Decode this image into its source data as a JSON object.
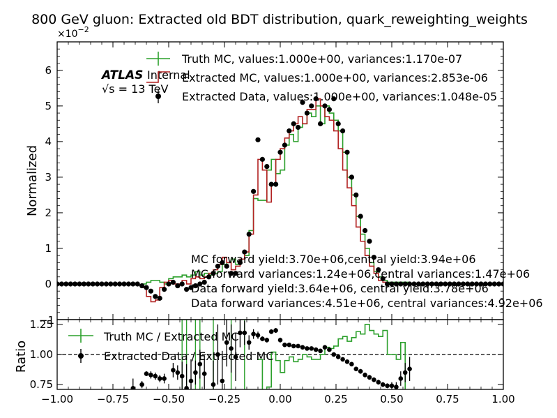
{
  "chart_data": {
    "type": "line",
    "title": "800 GeV gluon: Extracted old BDT distribution, quark_reweighting_weights",
    "scale_label": "×10",
    "scale_exp": "−2",
    "atlas": {
      "bold": "ATLAS",
      "rest": "Internal",
      "energy": "√s = 13 TeV"
    },
    "colors": {
      "truth": "#2ca02c",
      "extracted_mc": "#b22222",
      "data": "#000000"
    },
    "top": {
      "ylabel": "Normalized",
      "xlim": [
        -1.0,
        1.0
      ],
      "ylim": [
        -1.0,
        6.8
      ],
      "yticks": [
        0,
        1,
        2,
        3,
        4,
        5,
        6
      ],
      "ytick_labels": [
        "0",
        "1",
        "2",
        "3",
        "4",
        "5",
        "6"
      ],
      "low_label": "−1",
      "legend": [
        "Truth MC, values:1.000e+00, variances:1.170e-07",
        "Extracted MC, values:1.000e+00, variances:2.853e-06",
        "Extracted Data, values:1.000e+00, variances:1.048e-05"
      ],
      "annotations": [
        "MC forward yield:3.70e+06,central yield:3.94e+06",
        "MC forward variances:1.24e+06,central variances:1.47e+06",
        "Data forward yield:3.64e+06, central yield:3.78e+06",
        "Data forward variances:4.51e+06, central variances:4.92e+06"
      ],
      "edges": [
        -0.62,
        -0.6,
        -0.58,
        -0.56,
        -0.54,
        -0.52,
        -0.5,
        -0.48,
        -0.46,
        -0.44,
        -0.42,
        -0.4,
        -0.38,
        -0.36,
        -0.34,
        -0.32,
        -0.3,
        -0.28,
        -0.26,
        -0.24,
        -0.22,
        -0.2,
        -0.18,
        -0.16,
        -0.14,
        -0.12,
        -0.1,
        -0.08,
        -0.06,
        -0.04,
        -0.02,
        0.0,
        0.02,
        0.04,
        0.06,
        0.08,
        0.1,
        0.12,
        0.14,
        0.16,
        0.18,
        0.2,
        0.22,
        0.24,
        0.26,
        0.28,
        0.3,
        0.32,
        0.34,
        0.36,
        0.38,
        0.4,
        0.42,
        0.44,
        0.46,
        0.48,
        0.5,
        0.52,
        0.54,
        0.56,
        0.58,
        0.6
      ],
      "truth_mc": [
        0.0,
        0.05,
        0.1,
        0.1,
        0.05,
        0.0,
        0.15,
        0.2,
        0.2,
        0.25,
        0.2,
        0.25,
        0.35,
        0.25,
        0.3,
        0.25,
        0.3,
        0.35,
        0.55,
        0.6,
        0.7,
        0.55,
        0.7,
        0.8,
        1.5,
        2.4,
        2.35,
        2.35,
        3.2,
        3.5,
        3.1,
        3.2,
        3.9,
        4.2,
        4.0,
        4.4,
        4.5,
        4.8,
        4.7,
        5.0,
        4.5,
        5.0,
        4.8,
        4.6,
        4.3,
        3.7,
        3.0,
        2.5,
        1.9,
        1.4,
        1.0,
        0.6,
        0.35,
        0.2,
        0.1,
        0.05,
        0.05,
        0.05,
        0.05,
        0.05,
        0.0
      ],
      "extracted_mc": [
        -0.1,
        -0.35,
        -0.5,
        -0.45,
        -0.1,
        0.05,
        0.1,
        0.0,
        0.0,
        0.1,
        0.0,
        0.15,
        0.2,
        0.15,
        0.2,
        0.3,
        0.4,
        0.55,
        0.75,
        0.6,
        0.4,
        0.5,
        0.7,
        0.9,
        1.4,
        2.5,
        3.5,
        3.2,
        2.3,
        2.8,
        3.5,
        3.8,
        4.1,
        4.3,
        4.5,
        4.7,
        4.5,
        4.9,
        4.9,
        5.2,
        5.0,
        4.7,
        4.6,
        4.3,
        3.8,
        3.2,
        2.7,
        2.2,
        1.6,
        1.2,
        0.8,
        0.5,
        0.3,
        0.1,
        0.05,
        0.0,
        0.0,
        0.0,
        0.0,
        0.0,
        0.0
      ],
      "data_x": [
        -1.0,
        -0.98,
        -0.96,
        -0.94,
        -0.92,
        -0.9,
        -0.88,
        -0.86,
        -0.84,
        -0.82,
        -0.8,
        -0.78,
        -0.76,
        -0.74,
        -0.72,
        -0.7,
        -0.68,
        -0.66,
        -0.64,
        -0.62,
        -0.6,
        -0.58,
        -0.56,
        -0.54,
        -0.52,
        -0.5,
        -0.48,
        -0.46,
        -0.44,
        -0.42,
        -0.4,
        -0.38,
        -0.36,
        -0.34,
        -0.32,
        -0.3,
        -0.28,
        -0.26,
        -0.24,
        -0.22,
        -0.2,
        -0.18,
        -0.16,
        -0.14,
        -0.12,
        -0.1,
        -0.08,
        -0.06,
        -0.04,
        -0.02,
        0.0,
        0.02,
        0.04,
        0.06,
        0.08,
        0.1,
        0.12,
        0.14,
        0.16,
        0.18,
        0.2,
        0.22,
        0.24,
        0.26,
        0.28,
        0.3,
        0.32,
        0.34,
        0.36,
        0.38,
        0.4,
        0.42,
        0.44,
        0.46,
        0.48,
        0.5,
        0.52,
        0.54,
        0.56,
        0.58,
        0.6,
        0.62,
        0.64,
        0.66,
        0.68,
        0.7,
        0.72,
        0.74,
        0.76,
        0.78,
        0.8,
        0.82,
        0.84,
        0.86,
        0.88,
        0.9,
        0.92,
        0.94,
        0.96,
        0.98,
        1.0
      ],
      "data_y": [
        0.0,
        0.0,
        0.0,
        0.0,
        0.0,
        0.0,
        0.0,
        0.0,
        0.0,
        0.0,
        0.0,
        0.0,
        0.0,
        0.0,
        0.0,
        0.0,
        0.0,
        0.0,
        0.0,
        -0.05,
        -0.1,
        -0.2,
        -0.35,
        -0.4,
        -0.15,
        0.0,
        0.05,
        -0.05,
        0.0,
        -0.15,
        -0.1,
        -0.05,
        0.0,
        0.05,
        0.2,
        0.3,
        0.5,
        0.6,
        0.5,
        0.3,
        0.3,
        0.6,
        0.9,
        1.4,
        2.6,
        4.05,
        3.5,
        3.3,
        2.8,
        2.8,
        3.7,
        3.9,
        4.3,
        4.5,
        4.4,
        5.1,
        4.8,
        5.0,
        5.2,
        4.5,
        5.0,
        4.9,
        5.2,
        4.5,
        4.3,
        3.7,
        3.0,
        2.5,
        1.9,
        1.5,
        1.2,
        0.75,
        0.4,
        0.15,
        0.0,
        0.0,
        0.0,
        0.0,
        0.0,
        0.0,
        0.0,
        0.0,
        0.0,
        0.0,
        0.0,
        0.0,
        0.0,
        0.0,
        0.0,
        0.0,
        0.0,
        0.0,
        0.0,
        0.0,
        0.0,
        0.0,
        0.0,
        0.0,
        0.0,
        0.0,
        0.0
      ]
    },
    "bottom": {
      "ylabel": "Ratio",
      "xlim": [
        -1.0,
        1.0
      ],
      "ylim": [
        0.71,
        1.29
      ],
      "yticks": [
        0.75,
        1.0,
        1.25
      ],
      "ytick_labels": [
        "0.75",
        "1.00",
        "1.25"
      ],
      "xticks": [
        -1.0,
        -0.75,
        -0.5,
        -0.25,
        0.0,
        0.25,
        0.5,
        0.75,
        1.0
      ],
      "xtick_labels": [
        "−1.00",
        "−0.75",
        "−0.50",
        "−0.25",
        "0.00",
        "0.25",
        "0.50",
        "0.75",
        "1.00"
      ],
      "reference_line": 1.0,
      "legend": [
        "Truth MC / Extracted MC",
        "Extracted Data / Extracted MC"
      ],
      "truth_ratio_edges": [
        -0.1,
        -0.08,
        -0.06,
        -0.04,
        -0.02,
        0.0,
        0.02,
        0.04,
        0.06,
        0.08,
        0.1,
        0.12,
        0.14,
        0.16,
        0.18,
        0.2,
        0.22,
        0.24,
        0.26,
        0.28,
        0.3,
        0.32,
        0.34,
        0.36,
        0.38,
        0.4,
        0.42,
        0.44,
        0.46,
        0.48,
        0.5,
        0.52,
        0.54,
        0.56,
        0.58,
        0.6
      ],
      "truth_ratio": [
        0.96,
        0.67,
        0.73,
        1.02,
        0.95,
        0.85,
        0.95,
        0.98,
        0.94,
        0.96,
        1.0,
        0.98,
        0.96,
        0.96,
        1.0,
        1.06,
        1.05,
        1.07,
        1.13,
        1.15,
        1.11,
        1.14,
        1.19,
        1.17,
        1.25,
        1.2,
        1.17,
        1.15,
        1.2,
        1.0,
        1.0,
        0.96,
        1.1,
        0.7,
        0.7
      ],
      "data_ratio_x": [
        -0.66,
        -0.62,
        -0.6,
        -0.58,
        -0.56,
        -0.54,
        -0.52,
        -0.48,
        -0.46,
        -0.44,
        -0.42,
        -0.4,
        -0.38,
        -0.36,
        -0.34,
        -0.3,
        -0.28,
        -0.26,
        -0.24,
        -0.22,
        -0.2,
        -0.18,
        -0.16,
        -0.14,
        -0.12,
        -0.1,
        -0.08,
        -0.06,
        -0.04,
        -0.02,
        0.0,
        0.02,
        0.04,
        0.06,
        0.08,
        0.1,
        0.12,
        0.14,
        0.16,
        0.18,
        0.2,
        0.22,
        0.24,
        0.26,
        0.28,
        0.3,
        0.32,
        0.34,
        0.36,
        0.38,
        0.4,
        0.42,
        0.44,
        0.46,
        0.48,
        0.5,
        0.52,
        0.54,
        0.56,
        0.58
      ],
      "data_ratio_y": [
        0.72,
        0.75,
        0.84,
        0.83,
        0.82,
        0.8,
        0.8,
        0.87,
        0.85,
        0.82,
        0.72,
        0.78,
        0.85,
        0.92,
        0.84,
        0.75,
        1.0,
        0.78,
        1.1,
        1.05,
        0.98,
        1.18,
        1.18,
        1.1,
        1.17,
        1.16,
        1.13,
        1.12,
        1.19,
        1.2,
        1.12,
        1.08,
        1.08,
        1.07,
        1.07,
        1.06,
        1.05,
        1.05,
        1.04,
        1.03,
        1.06,
        1.04,
        1.0,
        0.98,
        0.96,
        0.94,
        0.92,
        0.88,
        0.86,
        0.83,
        0.81,
        0.79,
        0.77,
        0.75,
        0.74,
        0.74,
        0.73,
        0.8,
        0.85,
        0.88
      ],
      "data_ratio_err": [
        0.08,
        0.03,
        0.02,
        0.03,
        0.03,
        0.03,
        0.04,
        0.06,
        0.06,
        0.12,
        0.2,
        0.18,
        0.1,
        0.12,
        0.15,
        0.2,
        0.25,
        0.25,
        0.2,
        0.2,
        0.2,
        0.12,
        0.1,
        0.06,
        0.04,
        0.03,
        0.02,
        0.02,
        0.02,
        0.02,
        0.02,
        0.01,
        0.01,
        0.01,
        0.01,
        0.01,
        0.01,
        0.01,
        0.01,
        0.01,
        0.01,
        0.01,
        0.01,
        0.01,
        0.01,
        0.01,
        0.01,
        0.01,
        0.02,
        0.02,
        0.02,
        0.02,
        0.02,
        0.02,
        0.02,
        0.03,
        0.04,
        0.06,
        0.08,
        0.1
      ]
    }
  }
}
